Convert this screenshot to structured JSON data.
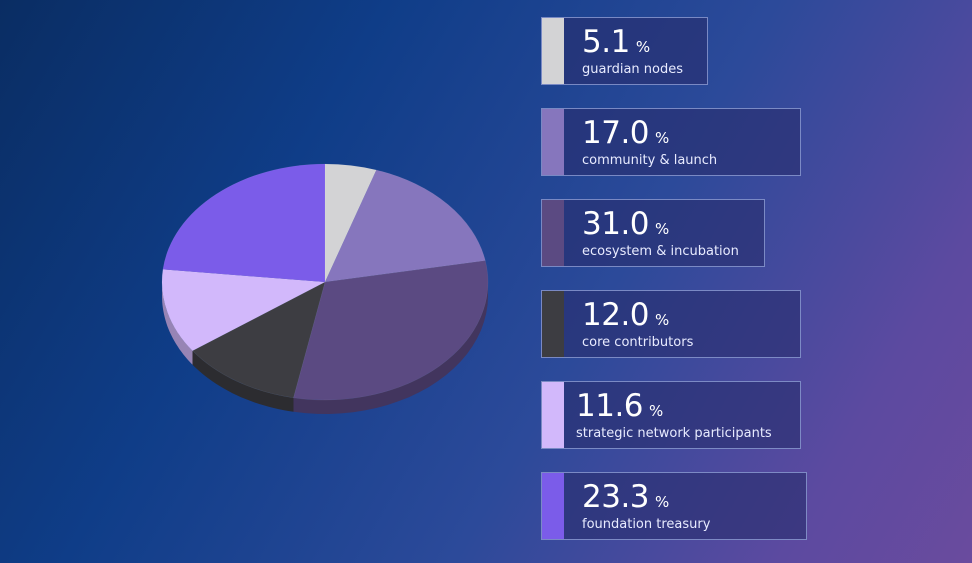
{
  "chart_data": {
    "type": "pie",
    "unit_symbol": "%",
    "slices": [
      {
        "label": "guardian nodes",
        "value_text": "5.1",
        "value": 5.1,
        "color": "#d3d3d5"
      },
      {
        "label": "community & launch",
        "value_text": "17.0",
        "value": 17.0,
        "color": "#8676bd"
      },
      {
        "label": "ecosystem & incubation",
        "value_text": "31.0",
        "value": 31.0,
        "color": "#5b4a82"
      },
      {
        "label": "core contributors",
        "value_text": "12.0",
        "value": 12.0,
        "color": "#3d3d42"
      },
      {
        "label": "strategic network participants",
        "value_text": "11.6",
        "value": 11.6,
        "color": "#d2b8fb"
      },
      {
        "label": "foundation treasury",
        "value_text": "23.3",
        "value": 23.3,
        "color": "#7b5ce9"
      }
    ]
  }
}
